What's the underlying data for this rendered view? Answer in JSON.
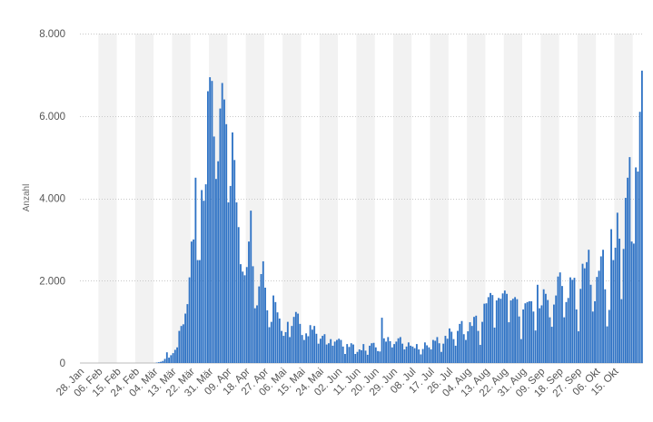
{
  "chart_data": {
    "type": "bar",
    "ylabel": "Anzahl",
    "xlabel": "",
    "ylim": [
      0,
      8000
    ],
    "yticks": [
      0,
      2000,
      4000,
      6000,
      8000
    ],
    "ytick_labels": [
      "0",
      "2.000",
      "4.000",
      "6.000",
      "8.000"
    ],
    "grid": true,
    "bar_color": "#2f73c5",
    "stripe_color": "#f2f2f2",
    "gridline_color": "#c8c8c8",
    "x_tick_labels": [
      "28. Jan",
      "06. Feb",
      "15. Feb",
      "24. Feb",
      "04. Mär",
      "13. Mär",
      "22. Mär",
      "31. Mär",
      "09. Apr",
      "18. Apr",
      "27. Apr",
      "06. Mai",
      "15. Mai",
      "24. Mai",
      "02. Jun",
      "11. Jun",
      "20. Jun",
      "29. Jun",
      "08. Jul",
      "17. Jul",
      "26. Jul",
      "04. Aug",
      "13. Aug",
      "22. Aug",
      "31. Aug",
      "09. Sep",
      "18. Sep",
      "27. Sep",
      "06. Okt",
      "15. Okt"
    ],
    "period": "28. Jan – 17. Okt (daily)",
    "values": [
      0,
      0,
      0,
      0,
      0,
      0,
      0,
      0,
      0,
      0,
      0,
      0,
      0,
      0,
      0,
      0,
      0,
      0,
      0,
      0,
      0,
      0,
      0,
      0,
      0,
      0,
      0,
      0,
      0,
      0,
      0,
      0,
      0,
      0,
      0,
      0,
      0,
      10,
      20,
      30,
      50,
      100,
      260,
      130,
      190,
      240,
      320,
      380,
      780,
      900,
      940,
      1200,
      1430,
      2080,
      2950,
      3000,
      4500,
      2500,
      2500,
      4200,
      3940,
      4340,
      6600,
      6940,
      6850,
      5500,
      4470,
      4900,
      6180,
      6800,
      6400,
      5800,
      3900,
      4300,
      5600,
      4930,
      3900,
      3300,
      2400,
      2220,
      2130,
      2330,
      2950,
      3700,
      2350,
      1330,
      1400,
      1860,
      2160,
      2470,
      1830,
      1280,
      870,
      1000,
      1640,
      1480,
      1230,
      1080,
      780,
      660,
      750,
      1000,
      630,
      900,
      1120,
      1240,
      1200,
      950,
      680,
      560,
      720,
      650,
      920,
      810,
      900,
      710,
      470,
      590,
      660,
      700,
      450,
      480,
      580,
      420,
      520,
      560,
      590,
      560,
      400,
      220,
      460,
      390,
      480,
      450,
      220,
      270,
      330,
      310,
      460,
      300,
      200,
      420,
      480,
      490,
      380,
      290,
      280,
      1100,
      600,
      520,
      630,
      530,
      380,
      460,
      520,
      600,
      630,
      470,
      330,
      400,
      500,
      420,
      400,
      360,
      460,
      330,
      210,
      340,
      500,
      430,
      380,
      330,
      560,
      540,
      630,
      480,
      270,
      470,
      660,
      590,
      840,
      760,
      580,
      420,
      780,
      950,
      1020,
      700,
      560,
      770,
      990,
      900,
      1120,
      1150,
      780,
      440,
      1000,
      1440,
      1450,
      1600,
      1700,
      1650,
      860,
      1520,
      1580,
      1560,
      1690,
      1760,
      1680,
      990,
      1520,
      1560,
      1600,
      1550,
      1130,
      580,
      1300,
      1450,
      1480,
      1500,
      1500,
      1250,
      790,
      1900,
      1330,
      1400,
      1790,
      1680,
      1530,
      1110,
      880,
      1420,
      1640,
      2100,
      2200,
      1870,
      1110,
      1480,
      1580,
      2080,
      2020,
      2070,
      1300,
      770,
      1800,
      2410,
      2300,
      2450,
      2750,
      1900,
      1250,
      1500,
      2090,
      2240,
      2590,
      2750,
      1790,
      890,
      1290,
      3250,
      2500,
      2800,
      3650,
      3020,
      1550,
      2770,
      4010,
      4500,
      5000,
      2950,
      2900,
      4750,
      4650,
      6100,
      7100
    ]
  }
}
